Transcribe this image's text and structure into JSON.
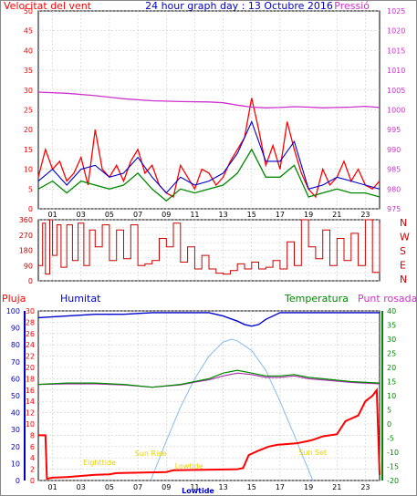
{
  "header": {
    "left_title": "Velocitat del vent",
    "center_title": "24 hour graph day : 13 Octubre 2016",
    "right_title": "Pressió"
  },
  "bottom_labels": {
    "rain": "Pluja",
    "humidity": "Humitat",
    "temperature": "Temperatura",
    "dew_point": "Punt rosada"
  },
  "compass": [
    "N",
    "W",
    "S",
    "E",
    "N"
  ],
  "tides": [
    {
      "label": "Eighttide",
      "hour": 4.3
    },
    {
      "label": "Sun Rise",
      "hour": 7.9
    },
    {
      "label": "Lowtide",
      "hour": 10.6
    },
    {
      "label": "Sun Set",
      "hour": 19.3
    }
  ],
  "bottom_axis_tide": "Lowtide",
  "colors": {
    "wind": "#ff0000",
    "gust": "#0000cc",
    "avg": "#008800",
    "pressure": "#cc33cc",
    "direction": "#cc0000",
    "humidity": "#0000cc",
    "temperature": "#008800",
    "dewpoint": "#aa33aa",
    "rain": "#ff0000",
    "sun": "#88bbee",
    "tide_label": "#e8d000"
  },
  "chart_data": [
    {
      "type": "line",
      "title": "Velocitat del vent / Pressió",
      "x_ticks": [
        "01",
        "03",
        "05",
        "07",
        "09",
        "11",
        "13",
        "15",
        "17",
        "19",
        "21",
        "23"
      ],
      "y_left_ticks": [
        0,
        5,
        10,
        15,
        20,
        25,
        30,
        35,
        40,
        45,
        50
      ],
      "ylim_left": [
        0,
        50
      ],
      "y_right_ticks": [
        975,
        980,
        985,
        990,
        995,
        1000,
        1005,
        1010,
        1015,
        1020,
        1025
      ],
      "ylim_right": [
        975,
        1025
      ],
      "xlim": [
        0,
        24
      ],
      "grid": true,
      "series": [
        {
          "name": "Velocitat del vent",
          "x": [
            0,
            0.5,
            1,
            1.5,
            2,
            2.5,
            3,
            3.5,
            4,
            4.5,
            5,
            5.5,
            6,
            6.5,
            7,
            7.5,
            8,
            8.5,
            9,
            9.5,
            10,
            10.5,
            11,
            11.5,
            12,
            12.5,
            13,
            13.5,
            14,
            14.5,
            15,
            15.5,
            16,
            16.5,
            17,
            17.5,
            18,
            18.5,
            19,
            19.5,
            20,
            20.5,
            21,
            21.5,
            22,
            22.5,
            23,
            23.5,
            24
          ],
          "values": [
            8,
            15,
            10,
            12,
            7,
            9,
            13,
            6,
            20,
            10,
            8,
            11,
            7,
            12,
            15,
            9,
            11,
            6,
            4,
            3,
            11,
            8,
            5,
            10,
            9,
            6,
            8,
            12,
            15,
            18,
            28,
            20,
            11,
            16,
            10,
            22,
            15,
            9,
            5,
            3,
            10,
            6,
            8,
            12,
            7,
            10,
            6,
            5,
            7
          ]
        },
        {
          "name": "Ratxa",
          "x": [
            0,
            1,
            2,
            3,
            4,
            5,
            6,
            7,
            8,
            9,
            10,
            11,
            12,
            13,
            14,
            15,
            16,
            17,
            18,
            19,
            20,
            21,
            22,
            23,
            24
          ],
          "values": [
            7,
            10,
            6,
            10,
            11,
            8,
            9,
            13,
            8,
            4,
            8,
            6,
            7,
            9,
            14,
            22,
            12,
            12,
            17,
            5,
            6,
            8,
            7,
            6,
            5
          ]
        },
        {
          "name": "Vent mitjà",
          "x": [
            0,
            1,
            2,
            3,
            4,
            5,
            6,
            7,
            8,
            9,
            10,
            11,
            12,
            13,
            14,
            15,
            16,
            17,
            18,
            19,
            20,
            21,
            22,
            23,
            24
          ],
          "values": [
            5,
            7,
            4,
            7,
            6,
            5,
            6,
            9,
            5,
            2,
            5,
            4,
            5,
            6,
            9,
            15,
            8,
            8,
            11,
            3,
            4,
            5,
            4,
            4,
            3
          ]
        },
        {
          "name": "Pressió",
          "x": [
            0,
            2,
            4,
            6,
            8,
            10,
            12,
            13,
            14,
            15,
            16,
            17,
            18,
            19,
            20,
            21,
            22,
            23,
            24
          ],
          "values": [
            1004.5,
            1004.2,
            1003.6,
            1002.8,
            1002.3,
            1002.1,
            1002.0,
            1001.8,
            1001.2,
            1000.7,
            1000.5,
            1000.6,
            1000.8,
            1000.7,
            1000.5,
            1000.6,
            1000.7,
            1000.9,
            1000.6
          ]
        }
      ]
    },
    {
      "type": "line",
      "title": "Direcció del vent",
      "ylim": [
        0,
        360
      ],
      "y_ticks": [
        0,
        45,
        90,
        135,
        180,
        225,
        270,
        315,
        360
      ],
      "y_tick_labels": [
        "0",
        "45",
        "90",
        "135",
        "180",
        "225",
        "270",
        "315",
        "360"
      ],
      "xlim": [
        0,
        24
      ],
      "grid": true,
      "series": [
        {
          "name": "Direcció",
          "x": [
            0,
            0.3,
            0.5,
            0.8,
            1,
            1.3,
            1.6,
            2,
            2.4,
            2.8,
            3.2,
            3.6,
            4,
            4.5,
            5,
            5.5,
            6,
            6.5,
            7,
            7.5,
            8,
            8.5,
            9,
            9.5,
            10,
            10.5,
            11,
            11.5,
            12,
            12.5,
            13,
            13.5,
            14,
            14.5,
            15,
            15.5,
            16,
            16.5,
            17,
            17.5,
            18,
            18.5,
            19,
            19.5,
            20,
            20.5,
            21,
            21.5,
            22,
            22.5,
            23,
            23.5,
            24
          ],
          "values": [
            90,
            340,
            40,
            360,
            150,
            330,
            80,
            330,
            120,
            340,
            90,
            300,
            200,
            330,
            120,
            300,
            130,
            330,
            90,
            100,
            120,
            250,
            200,
            340,
            110,
            200,
            70,
            150,
            70,
            45,
            40,
            60,
            100,
            70,
            110,
            70,
            80,
            120,
            70,
            230,
            90,
            360,
            200,
            130,
            300,
            90,
            250,
            120,
            280,
            90,
            360,
            50,
            340
          ]
        }
      ]
    },
    {
      "type": "line",
      "title": "Pluja / Humitat / Temperatura / Punt rosada",
      "x_ticks": [
        "01",
        "03",
        "05",
        "07",
        "09",
        "11",
        "13",
        "15",
        "17",
        "19",
        "21",
        "23"
      ],
      "rain_ticks": [
        0,
        2,
        4,
        6,
        8,
        10,
        12,
        14,
        16,
        18,
        20,
        22,
        24,
        26,
        28,
        30
      ],
      "ylim_rain": [
        0,
        30
      ],
      "humidity_ticks": [
        0,
        10,
        20,
        30,
        40,
        50,
        60,
        70,
        80,
        90,
        100
      ],
      "ylim_humidity": [
        0,
        100
      ],
      "temp_ticks": [
        -20,
        -15,
        -10,
        -5,
        0,
        5,
        10,
        15,
        20,
        25,
        30,
        35,
        40
      ],
      "ylim_temp": [
        -20,
        40
      ],
      "xlim": [
        0,
        24
      ],
      "grid": true,
      "series": [
        {
          "name": "Humitat",
          "x": [
            0,
            2,
            4,
            6,
            8,
            10,
            12,
            13,
            14,
            14.5,
            15,
            15.5,
            16,
            17,
            18,
            20,
            22,
            24
          ],
          "values": [
            96,
            97,
            98,
            98,
            99,
            99,
            99,
            97,
            94,
            92,
            91,
            92,
            95,
            99,
            99,
            99,
            99,
            99
          ]
        },
        {
          "name": "Temperatura",
          "x": [
            0,
            2,
            4,
            6,
            8,
            10,
            11,
            12,
            13,
            14,
            15,
            16,
            17,
            18,
            19,
            20,
            22,
            24
          ],
          "values": [
            14,
            14.5,
            14.5,
            14,
            13,
            14,
            15,
            16,
            18,
            19,
            18,
            17,
            17,
            17.5,
            16.5,
            16,
            15,
            14.5
          ]
        },
        {
          "name": "Punt rosada",
          "x": [
            0,
            2,
            4,
            6,
            8,
            10,
            11,
            12,
            13,
            14,
            15,
            16,
            17,
            18,
            19,
            20,
            22,
            24
          ],
          "values": [
            14,
            14.2,
            14.2,
            13.8,
            13,
            13.8,
            14.8,
            15.6,
            17,
            18,
            17.5,
            16.5,
            16.5,
            17,
            16,
            15.6,
            14.7,
            14.2
          ]
        },
        {
          "name": "Pluja",
          "x": [
            0,
            0.5,
            0.6,
            1,
            2,
            4,
            5,
            5.5,
            9,
            9.5,
            14,
            14.4,
            14.8,
            15.4,
            16.2,
            16.8,
            18.2,
            19,
            19.3,
            20,
            21,
            21.6,
            22.5,
            23,
            23.5,
            23.8,
            24
          ],
          "values": [
            8,
            8,
            0.3,
            0.5,
            0.6,
            1,
            1.1,
            1.3,
            1.5,
            1.8,
            2,
            2.2,
            4.5,
            5.2,
            6,
            6.3,
            6.6,
            7,
            7.2,
            7.8,
            8.2,
            10.5,
            11.5,
            14,
            15,
            16,
            1
          ]
        },
        {
          "name": "Sol",
          "x": [
            7.9,
            9,
            10,
            11,
            12,
            13,
            13.6,
            14,
            15,
            16,
            17,
            18,
            19.3
          ],
          "values": [
            0,
            7,
            13,
            18,
            22,
            24.5,
            25,
            24.7,
            23,
            19.5,
            14,
            8,
            0
          ]
        }
      ]
    }
  ]
}
